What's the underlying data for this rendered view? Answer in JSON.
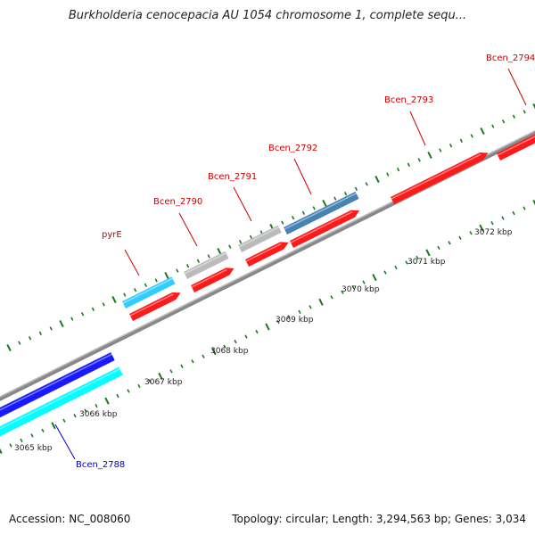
{
  "title": "Burkholderia cenocepacia AU 1054 chromosome 1, complete sequ...",
  "footer": {
    "accession": "Accession: NC_008060",
    "summary": "Topology: circular; Length: 3,294,563 bp; Genes: 3,034"
  },
  "ruler": {
    "labels": [
      "3065 kbp",
      "3066 kbp",
      "3067 kbp",
      "3068 kbp",
      "3069 kbp",
      "3070 kbp",
      "3071 kbp",
      "3072 kbp"
    ]
  },
  "genes": [
    {
      "name": "Bcen_2788",
      "color": "#0000cc",
      "strand": "reverse"
    },
    {
      "name": "pyrE",
      "color": "#cc0000",
      "strand": "forward"
    },
    {
      "name": "Bcen_2790",
      "color": "#cc0000",
      "strand": "forward"
    },
    {
      "name": "Bcen_2791",
      "color": "#cc0000",
      "strand": "forward"
    },
    {
      "name": "Bcen_2792",
      "color": "#cc0000",
      "strand": "forward"
    },
    {
      "name": "Bcen_2793",
      "color": "#cc0000",
      "strand": "forward"
    },
    {
      "name": "Bcen_2794",
      "color": "#cc0000",
      "strand": "forward"
    }
  ],
  "colors": {
    "forward_cds": "#ff1a1a",
    "reverse_cds": "#1a1aff",
    "gene_sky": "#33ccff",
    "gene_cyan": "#00ffff",
    "gene_steel": "#4682b4",
    "gene_gray": "#bbbbbb",
    "backbone": "#888888",
    "tick": "#1a7a1a"
  }
}
